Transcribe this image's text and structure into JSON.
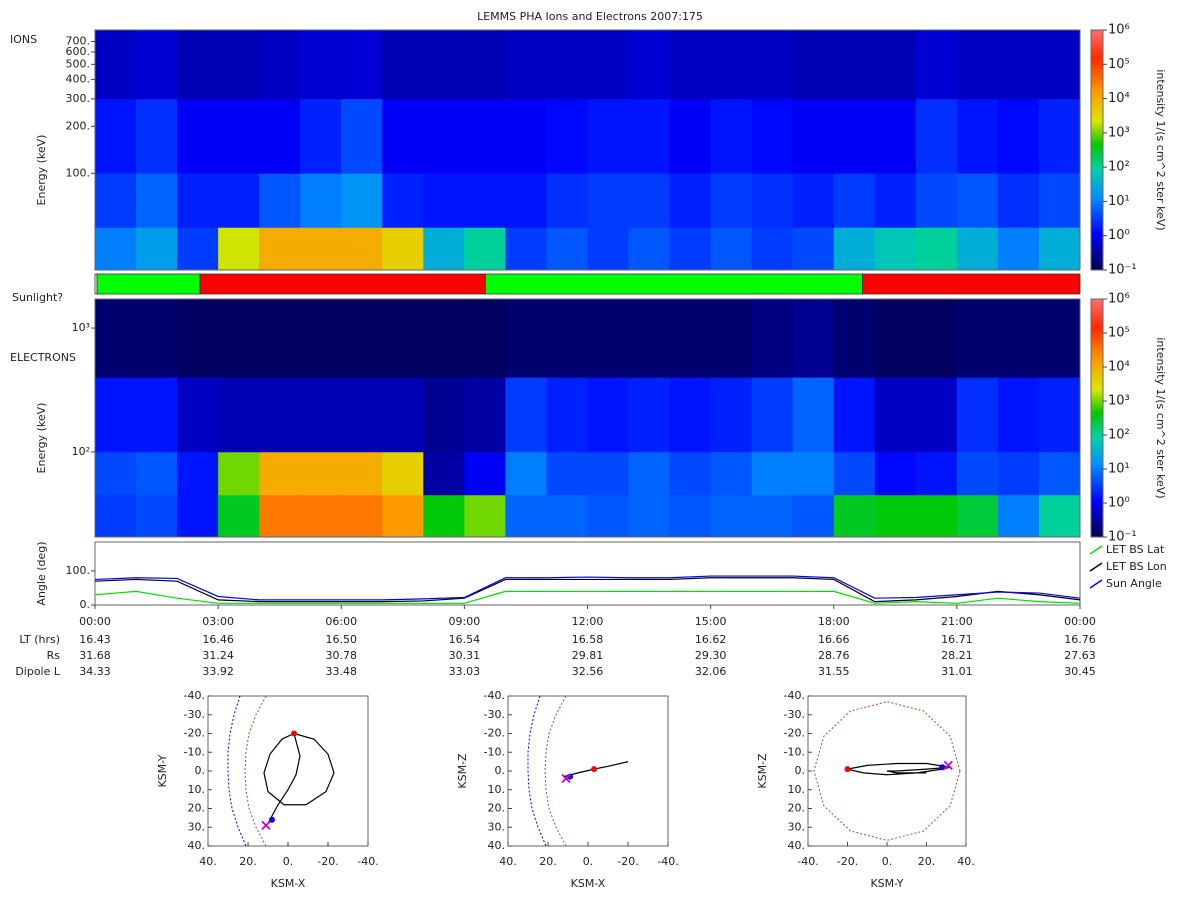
{
  "title": "LEMMS PHA Ions and Electrons  2007:175",
  "chart_data": [
    {
      "type": "spectrogram",
      "label": "IONS",
      "ylabel": "Energy (keV)",
      "log_y": true,
      "ylim": [
        24,
        830
      ],
      "yticks": [
        {
          "value": 100,
          "label": "100."
        },
        {
          "value": 200,
          "label": "200."
        },
        {
          "value": 300,
          "label": "300."
        },
        {
          "value": 400,
          "label": "400."
        },
        {
          "value": 500,
          "label": "500."
        },
        {
          "value": 600,
          "label": "600."
        },
        {
          "value": 700,
          "label": "700."
        }
      ],
      "xlim": [
        0,
        24
      ],
      "time_bins": [
        0,
        1,
        2,
        3,
        4,
        5,
        6,
        7,
        8,
        9,
        10,
        11,
        12,
        13,
        14,
        15,
        16,
        17,
        18,
        19,
        20,
        21,
        22,
        23,
        24
      ],
      "energy_bins": [
        24,
        45,
        100,
        300,
        830
      ],
      "zlim": [
        -1,
        6
      ],
      "z": [
        [
          1,
          1.3,
          0.5,
          3.3,
          4,
          4,
          4,
          3.6,
          1.5,
          2,
          0.5,
          0.7,
          0.5,
          0.7,
          0.5,
          0.7,
          0.5,
          0.6,
          1.5,
          1.8,
          2,
          1.5,
          1,
          1.5
        ],
        [
          0.5,
          0.8,
          0.3,
          0.3,
          0.7,
          1,
          1.2,
          0.3,
          0.2,
          0.2,
          0.2,
          0.4,
          0.5,
          0.5,
          0.3,
          0.5,
          0.4,
          0.3,
          0.5,
          0.3,
          0.6,
          0.7,
          0.4,
          0.6
        ],
        [
          0.2,
          0.4,
          0,
          0,
          0,
          0.3,
          0.6,
          0,
          0,
          0,
          0,
          0.1,
          0.2,
          0.2,
          0,
          0.2,
          0.1,
          0,
          0,
          0,
          0.4,
          0.2,
          0.1,
          0.3
        ],
        [
          -0.3,
          -0.2,
          -0.4,
          -0.4,
          -0.3,
          -0.2,
          -0.2,
          -0.4,
          -0.4,
          -0.4,
          -0.3,
          -0.3,
          -0.3,
          -0.2,
          -0.3,
          -0.3,
          -0.3,
          -0.4,
          -0.4,
          -0.4,
          -0.2,
          -0.3,
          -0.3,
          -0.3
        ]
      ],
      "colorbar": {
        "label": "intensity 1/(s cm^2 ster keV)",
        "zticks": [
          {
            "value": -1,
            "label": "10⁻¹"
          },
          {
            "value": 0,
            "label": "10⁰"
          },
          {
            "value": 1,
            "label": "10¹"
          },
          {
            "value": 2,
            "label": "10²"
          },
          {
            "value": 3,
            "label": "10³"
          },
          {
            "value": 4,
            "label": "10⁴"
          },
          {
            "value": 5,
            "label": "10⁵"
          },
          {
            "value": 6,
            "label": "10⁶"
          }
        ]
      }
    },
    {
      "type": "timeline",
      "label": "Sunlight?",
      "xlim": [
        0,
        24
      ],
      "segments": [
        {
          "start": 0,
          "end": 0.05,
          "color": "#ffffff"
        },
        {
          "start": 0.05,
          "end": 2.56,
          "color": "#00ff00"
        },
        {
          "start": 2.56,
          "end": 9.51,
          "color": "#ff0000"
        },
        {
          "start": 9.51,
          "end": 18.7,
          "color": "#00ff00"
        },
        {
          "start": 18.7,
          "end": 24,
          "color": "#ff0000"
        }
      ]
    },
    {
      "type": "spectrogram",
      "label": "ELECTRONS",
      "ylabel": "Energy (keV)",
      "log_y": true,
      "ylim": [
        20.6,
        1715
      ],
      "yticks": [
        {
          "value": 100,
          "label": "10²"
        },
        {
          "value": 1000,
          "label": "10³"
        }
      ],
      "xlim": [
        0,
        24
      ],
      "time_bins": [
        0,
        1,
        2,
        3,
        4,
        5,
        6,
        7,
        8,
        9,
        10,
        11,
        12,
        13,
        14,
        15,
        16,
        17,
        18,
        19,
        20,
        21,
        22,
        23,
        24
      ],
      "energy_bins": [
        20.6,
        45,
        100,
        400,
        1715
      ],
      "zlim": [
        -1,
        6
      ],
      "z": [
        [
          0.5,
          0.6,
          0.2,
          2.5,
          4.5,
          4.5,
          4.5,
          4.2,
          2.6,
          3,
          0.8,
          0.8,
          0.7,
          0.8,
          0.7,
          0.8,
          0.8,
          0.7,
          2.5,
          2.6,
          2.6,
          2.4,
          1,
          2
        ],
        [
          0.6,
          0.7,
          0.2,
          3,
          4,
          4,
          4,
          3.6,
          -0.5,
          0,
          1,
          0.6,
          0.6,
          0.8,
          0.6,
          0.7,
          1,
          1,
          0.6,
          0.1,
          0.2,
          0.6,
          0.5,
          0.7
        ],
        [
          0.2,
          0.2,
          -0.3,
          -0.4,
          -0.4,
          -0.4,
          -0.4,
          -0.4,
          -0.6,
          -0.5,
          0.5,
          0.3,
          0.2,
          0.3,
          0.2,
          0.3,
          0.5,
          0.8,
          0.2,
          -0.3,
          -0.3,
          0.4,
          0.2,
          0.3
        ],
        [
          -0.8,
          -0.8,
          -0.9,
          -0.9,
          -0.9,
          -0.9,
          -0.9,
          -0.9,
          -0.9,
          -0.9,
          -0.8,
          -0.8,
          -0.8,
          -0.8,
          -0.8,
          -0.8,
          -0.7,
          -0.6,
          -0.8,
          -0.9,
          -0.9,
          -0.8,
          -0.8,
          -0.8
        ]
      ],
      "colorbar": {
        "label": "intensity 1/(s cm^2 ster keV)",
        "zticks": [
          {
            "value": -1,
            "label": "10⁻¹"
          },
          {
            "value": 0,
            "label": "10⁰"
          },
          {
            "value": 1,
            "label": "10¹"
          },
          {
            "value": 2,
            "label": "10²"
          },
          {
            "value": 3,
            "label": "10³"
          },
          {
            "value": 4,
            "label": "10⁴"
          },
          {
            "value": 5,
            "label": "10⁵"
          },
          {
            "value": 6,
            "label": "10⁶"
          }
        ]
      }
    },
    {
      "type": "line",
      "ylabel": "Angle (deg)",
      "ylim": [
        0,
        185
      ],
      "xlim": [
        0,
        24
      ],
      "yticks": [
        {
          "value": 0,
          "label": "0."
        },
        {
          "value": 100,
          "label": "100."
        }
      ],
      "xticks": [
        {
          "value": 0,
          "label": "00:00"
        },
        {
          "value": 3,
          "label": "03:00"
        },
        {
          "value": 6,
          "label": "06:00"
        },
        {
          "value": 9,
          "label": "09:00"
        },
        {
          "value": 12,
          "label": "12:00"
        },
        {
          "value": 15,
          "label": "15:00"
        },
        {
          "value": 18,
          "label": "18:00"
        },
        {
          "value": 21,
          "label": "21:00"
        },
        {
          "value": 24,
          "label": "00:00"
        }
      ],
      "x": [
        0,
        1,
        2,
        3,
        4,
        5,
        6,
        7,
        8,
        9,
        10,
        11,
        12,
        13,
        14,
        15,
        16,
        17,
        18,
        19,
        20,
        21,
        22,
        23,
        24
      ],
      "series": [
        {
          "name": "LET BS Lat",
          "color": "#00dd00",
          "values": [
            30,
            40,
            20,
            5,
            5,
            5,
            5,
            5,
            5,
            5,
            40,
            40,
            40,
            40,
            40,
            40,
            40,
            40,
            40,
            5,
            10,
            5,
            20,
            10,
            5
          ]
        },
        {
          "name": "LET BS Lon",
          "color": "#000000",
          "values": [
            70,
            75,
            70,
            15,
            10,
            10,
            10,
            10,
            12,
            20,
            75,
            75,
            75,
            75,
            75,
            80,
            80,
            80,
            75,
            10,
            15,
            25,
            40,
            30,
            15
          ]
        },
        {
          "name": "Sun Angle",
          "color": "#0000ff",
          "values": [
            75,
            80,
            78,
            25,
            15,
            15,
            15,
            15,
            18,
            22,
            80,
            80,
            82,
            80,
            80,
            85,
            85,
            85,
            80,
            20,
            22,
            30,
            38,
            35,
            20
          ]
        }
      ]
    },
    {
      "type": "table",
      "rows": [
        {
          "label": "LT (hrs)",
          "values": [
            "16.43",
            "16.46",
            "16.50",
            "16.54",
            "16.58",
            "16.62",
            "16.66",
            "16.71",
            "16.76"
          ]
        },
        {
          "label": "Rs",
          "values": [
            "31.68",
            "31.24",
            "30.78",
            "30.31",
            "29.81",
            "29.30",
            "28.76",
            "28.21",
            "27.63"
          ]
        },
        {
          "label": "Dipole L",
          "values": [
            "34.33",
            "33.92",
            "33.48",
            "33.03",
            "32.56",
            "32.06",
            "31.55",
            "31.01",
            "30.45"
          ]
        }
      ]
    },
    {
      "type": "orbit",
      "xlabel": "KSM-X",
      "ylabel": "KSM-Y",
      "xlim": [
        40,
        -40
      ],
      "ylim": [
        40,
        -40
      ],
      "xticks": [
        {
          "value": 40,
          "label": "40."
        },
        {
          "value": 20,
          "label": "20."
        },
        {
          "value": 0,
          "label": "0."
        },
        {
          "value": -20,
          "label": "-20."
        },
        {
          "value": -40,
          "label": "-40."
        }
      ],
      "yticks": [
        {
          "value": -40,
          "label": "-40."
        },
        {
          "value": -30,
          "label": "-30."
        },
        {
          "value": -20,
          "label": "-20."
        },
        {
          "value": -10,
          "label": "-10."
        },
        {
          "value": 0,
          "label": "0."
        },
        {
          "value": 10,
          "label": "10."
        },
        {
          "value": 20,
          "label": "20."
        },
        {
          "value": 30,
          "label": "30."
        },
        {
          "value": 40,
          "label": "40."
        }
      ],
      "curves": [
        {
          "color": "#a0522d",
          "dashed": true,
          "x": [
            11,
            16,
            19.5,
            21,
            21.5,
            21,
            19.5,
            16,
            11
          ],
          "y": [
            -40,
            -30,
            -20,
            -10,
            0,
            10,
            20,
            30,
            40
          ]
        },
        {
          "color": "#0000ff",
          "dashed": true,
          "x": [
            24,
            27,
            29,
            30,
            30,
            29.5,
            28,
            25,
            21
          ],
          "y": [
            -40,
            -30,
            -20,
            -10,
            0,
            10,
            20,
            30,
            40
          ]
        }
      ],
      "trajectory": {
        "color": "#000000",
        "x": [
          -3,
          -13,
          -20,
          -23,
          -19,
          -9,
          2,
          10,
          12,
          9,
          3,
          -3,
          -6,
          -4,
          0,
          5,
          8,
          10
        ],
        "y": [
          -20,
          -17,
          -9,
          1,
          11,
          18,
          18,
          11,
          1,
          -9,
          -17,
          -20,
          -8,
          2,
          10,
          18,
          24,
          28
        ]
      },
      "markers": [
        {
          "x": -3,
          "y": -20,
          "color": "#ff0000",
          "shape": "dot"
        },
        {
          "x": 8,
          "y": 26,
          "color": "#0000ff",
          "shape": "dot"
        },
        {
          "x": 11,
          "y": 29,
          "color": "#cc00cc",
          "shape": "x"
        }
      ]
    },
    {
      "type": "orbit",
      "xlabel": "KSM-X",
      "ylabel": "KSM-Z",
      "xlim": [
        40,
        -40
      ],
      "ylim": [
        40,
        -40
      ],
      "xticks": [
        {
          "value": 40,
          "label": "40."
        },
        {
          "value": 20,
          "label": "20."
        },
        {
          "value": 0,
          "label": "0."
        },
        {
          "value": -20,
          "label": "-20."
        },
        {
          "value": -40,
          "label": "-40."
        }
      ],
      "yticks": [
        {
          "value": -40,
          "label": "-40."
        },
        {
          "value": -30,
          "label": "-30."
        },
        {
          "value": -20,
          "label": "-20."
        },
        {
          "value": -10,
          "label": "-10."
        },
        {
          "value": 0,
          "label": "0."
        },
        {
          "value": 10,
          "label": "10."
        },
        {
          "value": 20,
          "label": "20."
        },
        {
          "value": 30,
          "label": "30."
        },
        {
          "value": 40,
          "label": "40."
        }
      ],
      "curves": [
        {
          "color": "#a0522d",
          "dashed": true,
          "x": [
            11,
            16,
            19.5,
            21,
            21.5,
            21,
            19.5,
            16,
            11
          ],
          "y": [
            -40,
            -30,
            -20,
            -10,
            0,
            10,
            20,
            30,
            40
          ]
        },
        {
          "color": "#0000ff",
          "dashed": true,
          "x": [
            24,
            27,
            29,
            30,
            30,
            29.5,
            28,
            25,
            21
          ],
          "y": [
            -40,
            -30,
            -20,
            -10,
            0,
            10,
            20,
            30,
            40
          ]
        }
      ],
      "trajectory": {
        "color": "#000000",
        "x": [
          12,
          5,
          -3,
          -10,
          -20
        ],
        "y": [
          3,
          1,
          -1,
          -2.5,
          -5
        ]
      },
      "markers": [
        {
          "x": -3,
          "y": -1,
          "color": "#ff0000",
          "shape": "dot"
        },
        {
          "x": 9,
          "y": 3,
          "color": "#0000ff",
          "shape": "dot"
        },
        {
          "x": 11,
          "y": 4,
          "color": "#cc00cc",
          "shape": "x"
        }
      ]
    },
    {
      "type": "orbit",
      "xlabel": "KSM-Y",
      "ylabel": "KSM-Z",
      "xlim": [
        -40,
        40
      ],
      "ylim": [
        40,
        -40
      ],
      "xticks": [
        {
          "value": -40,
          "label": "-40."
        },
        {
          "value": -20,
          "label": "-20."
        },
        {
          "value": 0,
          "label": "0."
        },
        {
          "value": 20,
          "label": "20."
        },
        {
          "value": 40,
          "label": "40."
        }
      ],
      "yticks": [
        {
          "value": -40,
          "label": "-40."
        },
        {
          "value": -30,
          "label": "-30."
        },
        {
          "value": -20,
          "label": "-20."
        },
        {
          "value": -10,
          "label": "-10."
        },
        {
          "value": 0,
          "label": "0."
        },
        {
          "value": 10,
          "label": "10."
        },
        {
          "value": 20,
          "label": "20."
        },
        {
          "value": 30,
          "label": "30."
        },
        {
          "value": 40,
          "label": "40."
        }
      ],
      "curves": [
        {
          "color": "#a0522d",
          "dashed": true,
          "x": [
            37,
            32,
            18.5,
            0,
            -18.5,
            -32,
            -37,
            -32,
            -18.5,
            0,
            18.5,
            32,
            37
          ],
          "y": [
            0,
            -18.5,
            -32,
            -37,
            -32,
            -18.5,
            0,
            18.5,
            32,
            37,
            32,
            18.5,
            0
          ]
        }
      ],
      "trajectory": {
        "color": "#000000",
        "x": [
          32,
          20,
          5,
          -10,
          -20,
          -12,
          0,
          15,
          28,
          32,
          20,
          5,
          0,
          5,
          20
        ],
        "y": [
          -2,
          -4,
          -4,
          -3,
          -1,
          1,
          2,
          1,
          -1,
          -2,
          -1,
          0,
          0,
          1,
          1
        ]
      },
      "markers": [
        {
          "x": -20,
          "y": -1,
          "color": "#ff0000",
          "shape": "dot"
        },
        {
          "x": 28,
          "y": -2,
          "color": "#0000ff",
          "shape": "dot"
        },
        {
          "x": 31,
          "y": -3,
          "color": "#cc00cc",
          "shape": "x"
        }
      ]
    }
  ]
}
